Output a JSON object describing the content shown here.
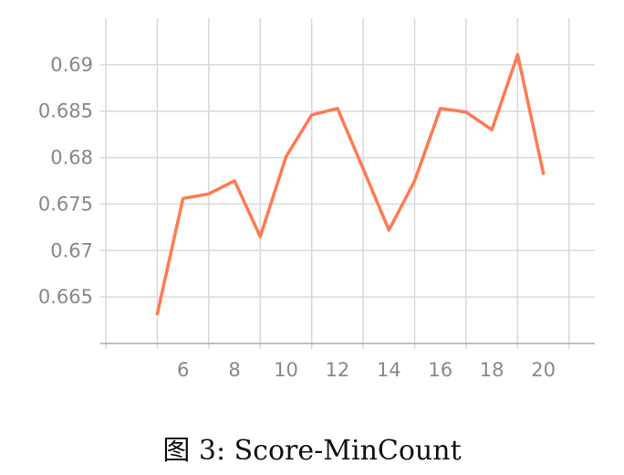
{
  "caption": "图 3: Score-MinCount",
  "chart_data": {
    "type": "line",
    "title": "",
    "xlabel": "",
    "ylabel": "",
    "x": [
      5,
      6,
      7,
      8,
      9,
      10,
      11,
      12,
      13,
      14,
      15,
      16,
      17,
      18,
      19,
      20
    ],
    "series": [
      {
        "values": [
          0.6632,
          0.6756,
          0.6761,
          0.6775,
          0.6715,
          0.6801,
          0.6846,
          0.6853,
          0.6788,
          0.6722,
          0.6775,
          0.6853,
          0.6849,
          0.683,
          0.6911,
          0.6783
        ],
        "color": "#ff7a50"
      }
    ],
    "xlim": [
      3,
      22
    ],
    "ylim": [
      0.66,
      0.695
    ],
    "x_ticks": [
      "6",
      "8",
      "10",
      "12",
      "14",
      "16",
      "18",
      "20"
    ],
    "y_ticks": [
      "0.665",
      "0.67",
      "0.675",
      "0.68",
      "0.685",
      "0.69"
    ],
    "grid": true,
    "grid_color": "#d9d9d9",
    "axis_color": "#aaaaaa"
  }
}
